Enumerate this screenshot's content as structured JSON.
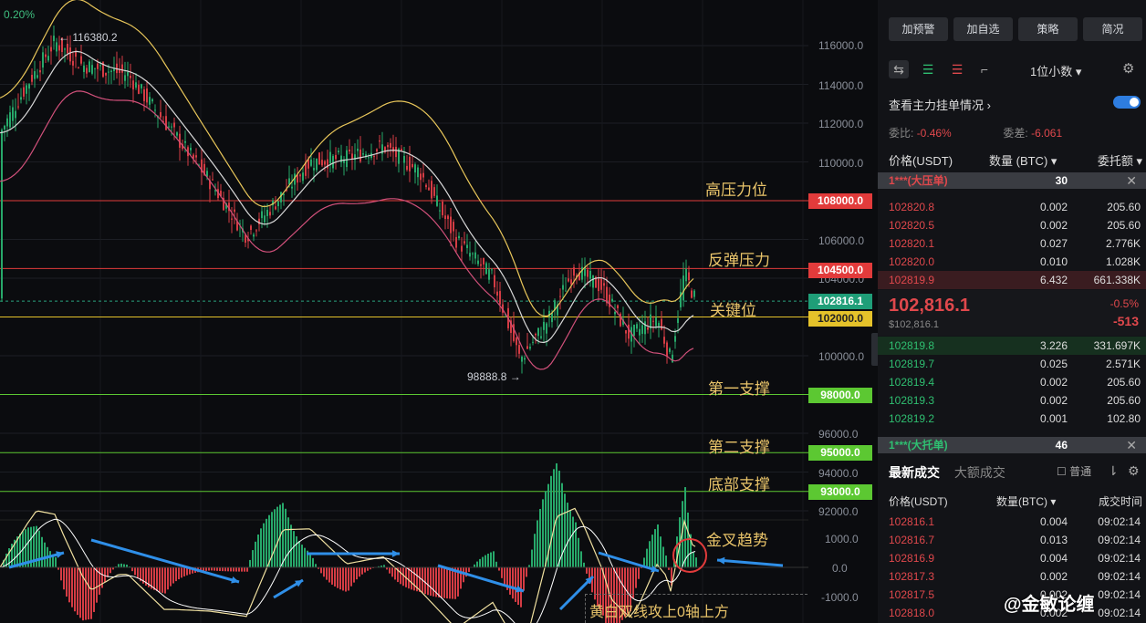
{
  "chart": {
    "top_change": "0.20%",
    "high_label": "116380.2",
    "low_label": "98888.8",
    "y_ticks": [
      "116000.0",
      "114000.0",
      "112000.0",
      "110000.0",
      "106000.0",
      "104000.0",
      "100000.0",
      "96000.0",
      "94000.0",
      "92000.0"
    ],
    "macd_ticks": [
      "1000.0",
      "0.0",
      "-1000.0"
    ],
    "levels": [
      {
        "label": "高压力位",
        "price": "108000.0",
        "color": "#e23b3b"
      },
      {
        "label": "反弹压力",
        "price": "104500.0",
        "color": "#e23b3b"
      },
      {
        "label": "关键位",
        "price": "102000.0",
        "color": "#e5c22a"
      },
      {
        "label": "第一支撑",
        "price": "98000.0",
        "color": "#5cc832"
      },
      {
        "label": "第二支撑",
        "price": "95000.0",
        "color": "#5cc832"
      },
      {
        "label": "底部支撑",
        "price": "93000.0",
        "color": "#5cc832"
      }
    ],
    "current_price_tag": "102816.1",
    "current_tag_color": "#1f9e78",
    "macd_label": "金叉趋势",
    "macd_note": "黄白双线攻上0轴上方"
  },
  "panel": {
    "top_buttons": [
      "加预警",
      "加自选",
      "策略",
      "简况"
    ],
    "decimal_select": "1位小数",
    "main_force": "查看主力挂单情况",
    "ratio_label": "委比:",
    "ratio_value": "-0.46%",
    "diff_label": "委差:",
    "diff_value": "-6.061",
    "hdr_price": "价格(USDT)",
    "hdr_qty": "数量 (BTC)",
    "hdr_amount": "委托额",
    "ask_big": {
      "label": "1***(大压单)",
      "value": "30"
    },
    "asks": [
      {
        "p": "102820.8",
        "q": "0.002",
        "a": "205.60"
      },
      {
        "p": "102820.5",
        "q": "0.002",
        "a": "205.60"
      },
      {
        "p": "102820.1",
        "q": "0.027",
        "a": "2.776K"
      },
      {
        "p": "102820.0",
        "q": "0.010",
        "a": "1.028K"
      },
      {
        "p": "102819.9",
        "q": "6.432",
        "a": "661.338K"
      }
    ],
    "last_price": "102,816.1",
    "last_usd": "$102,816.1",
    "last_pct": "-0.5%",
    "last_chg": "-513",
    "bids": [
      {
        "p": "102819.8",
        "q": "3.226",
        "a": "331.697K"
      },
      {
        "p": "102819.7",
        "q": "0.025",
        "a": "2.571K"
      },
      {
        "p": "102819.4",
        "q": "0.002",
        "a": "205.60"
      },
      {
        "p": "102819.3",
        "q": "0.002",
        "a": "205.60"
      },
      {
        "p": "102819.2",
        "q": "0.001",
        "a": "102.80"
      }
    ],
    "bid_big": {
      "label": "1***(大托单)",
      "value": "46"
    },
    "tab_latest": "最新成交",
    "tab_large": "大额成交",
    "normal": "普通",
    "hdr2_price": "价格(USDT)",
    "hdr2_qty": "数量(BTC)",
    "hdr2_time": "成交时间",
    "trades": [
      {
        "p": "102816.1",
        "q": "0.004",
        "t": "09:02:14"
      },
      {
        "p": "102816.7",
        "q": "0.013",
        "t": "09:02:14"
      },
      {
        "p": "102816.9",
        "q": "0.004",
        "t": "09:02:14"
      },
      {
        "p": "102817.3",
        "q": "0.002",
        "t": "09:02:14"
      },
      {
        "p": "102817.5",
        "q": "0.002",
        "t": "09:02:14"
      },
      {
        "p": "102818.0",
        "q": "0.002",
        "t": "09:02:14"
      }
    ]
  },
  "watermark": "@金敏论缠"
}
